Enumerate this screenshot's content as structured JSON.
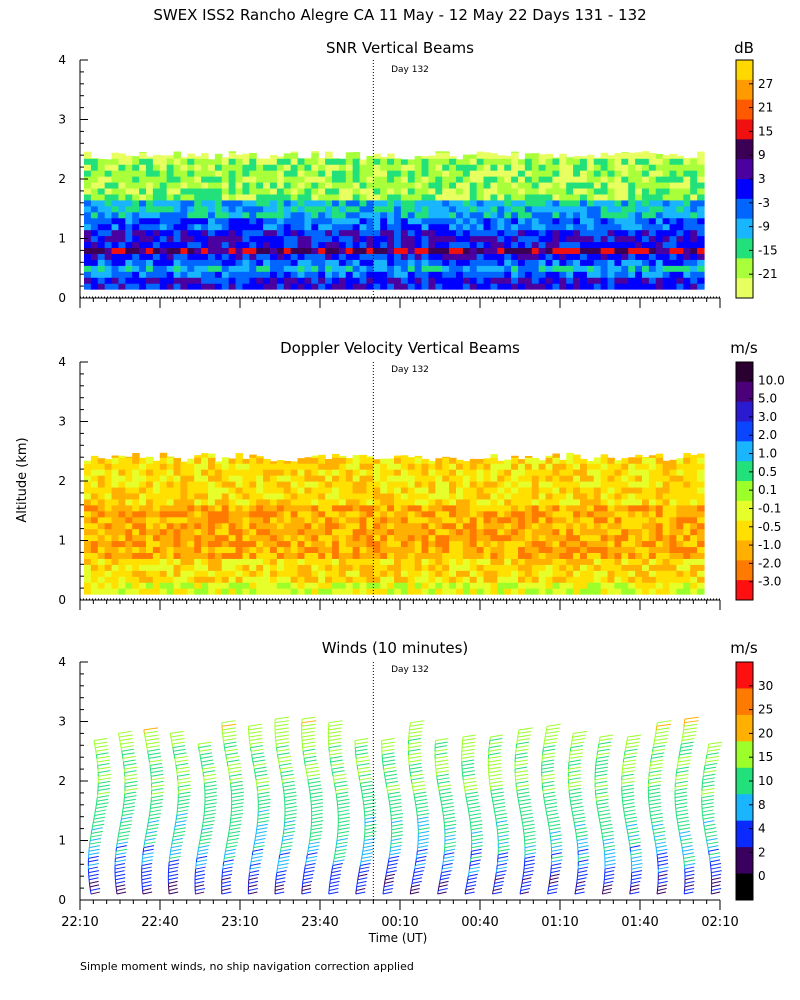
{
  "figure": {
    "title": "SWEX ISS2 Rancho Alegre CA  11 May - 12 May 22 Days 131 - 132",
    "shared_ylabel": "Altitude (km)",
    "footnote": "Simple moment winds, no ship navigation correction applied",
    "day_marker": "Day 132"
  },
  "chart_data": [
    {
      "type": "heatmap",
      "title": "SNR Vertical Beams",
      "units_label": "dB",
      "xlabel": "",
      "x_ticks": [
        "22:10",
        "22:40",
        "23:10",
        "23:40",
        "00:10",
        "00:40",
        "01:10",
        "01:40",
        "02:10"
      ],
      "y_ticks": [
        "0",
        "1",
        "2",
        "3",
        "4"
      ],
      "ylim": [
        0,
        4
      ],
      "time_range_hours": [
        22.1667,
        26.1667
      ],
      "day_boundary_hours": 24.0,
      "data_top_km": 2.4,
      "data_bottom_km": 0.15,
      "colorbar_labels": [
        "27",
        "21",
        "15",
        "9",
        "3",
        "-3",
        "-9",
        "-15",
        "-21"
      ],
      "colorbar_colors": [
        "#ffd800",
        "#ff9a00",
        "#ff5a00",
        "#f01010",
        "#3b0055",
        "#4b00a0",
        "#0000ff",
        "#0066ff",
        "#19b5ff",
        "#22e07a",
        "#a8ff3a",
        "#e8ff60"
      ],
      "profile": [
        {
          "alt_km": 2.35,
          "value_db": -21
        },
        {
          "alt_km": 2.2,
          "value_db": -15
        },
        {
          "alt_km": 1.8,
          "value_db": -15
        },
        {
          "alt_km": 1.5,
          "value_db": -9
        },
        {
          "alt_km": 1.2,
          "value_db": -3
        },
        {
          "alt_km": 0.9,
          "value_db": 3
        },
        {
          "alt_km": 0.7,
          "value_db": 9
        },
        {
          "alt_km": 0.45,
          "value_db": -9
        },
        {
          "alt_km": 0.25,
          "value_db": 3
        }
      ]
    },
    {
      "type": "heatmap",
      "title": "Doppler Velocity Vertical Beams",
      "units_label": "m/s",
      "xlabel": "",
      "x_ticks": [
        "22:10",
        "22:40",
        "23:10",
        "23:40",
        "00:10",
        "00:40",
        "01:10",
        "01:40",
        "02:10"
      ],
      "y_ticks": [
        "0",
        "1",
        "2",
        "3",
        "4"
      ],
      "ylim": [
        0,
        4
      ],
      "time_range_hours": [
        22.1667,
        26.1667
      ],
      "day_boundary_hours": 24.0,
      "data_top_km": 2.4,
      "data_bottom_km": 0.1,
      "colorbar_labels": [
        "10.0",
        "5.0",
        "3.0",
        "2.0",
        "1.0",
        "0.5",
        "0.1",
        "-0.1",
        "-0.5",
        "-1.0",
        "-2.0",
        "-3.0"
      ],
      "colorbar_colors": [
        "#2a0030",
        "#4b007a",
        "#2a1ad0",
        "#0a45ff",
        "#19b5ff",
        "#22e07a",
        "#9dff2a",
        "#e6ff2a",
        "#ffe000",
        "#ffb000",
        "#ff7a00",
        "#ff1010"
      ],
      "profile": [
        {
          "alt_km": 2.3,
          "value_ms": -0.5
        },
        {
          "alt_km": 1.8,
          "value_ms": -0.5
        },
        {
          "alt_km": 1.3,
          "value_ms": -1.0
        },
        {
          "alt_km": 0.8,
          "value_ms": -1.0
        },
        {
          "alt_km": 0.4,
          "value_ms": -0.5
        },
        {
          "alt_km": 0.2,
          "value_ms": -0.1
        }
      ]
    },
    {
      "type": "scatter",
      "title": "Winds (10 minutes)",
      "units_label": "m/s",
      "xlabel": "Time (UT)",
      "x_ticks": [
        "22:10",
        "22:40",
        "23:10",
        "23:40",
        "00:10",
        "00:40",
        "01:10",
        "01:40",
        "02:10"
      ],
      "y_ticks": [
        "0",
        "1",
        "2",
        "3",
        "4"
      ],
      "ylim": [
        0,
        4
      ],
      "time_range_hours": [
        22.1667,
        26.1667
      ],
      "day_boundary_hours": 24.0,
      "colorbar_labels": [
        "30",
        "25",
        "20",
        "15",
        "10",
        "8",
        "4",
        "2",
        "0"
      ],
      "colorbar_colors": [
        "#ff1010",
        "#ff7a00",
        "#ffb000",
        "#9dff2a",
        "#22e07a",
        "#19b5ff",
        "#0a2aff",
        "#3a0060",
        "#000000"
      ],
      "profile_times_hours": [
        22.25,
        22.4167,
        22.5833,
        22.75,
        22.9167,
        23.0833,
        23.25,
        23.4167,
        23.5833,
        23.75,
        23.9167,
        24.0833,
        24.25,
        24.4167,
        24.5833,
        24.75,
        24.9167,
        25.0833,
        25.25,
        25.4167,
        25.5833,
        25.75,
        25.9167,
        26.0833
      ],
      "wind_profile": [
        {
          "alt_km": 3.0,
          "speed_ms": 20
        },
        {
          "alt_km": 2.5,
          "speed_ms": 15
        },
        {
          "alt_km": 2.0,
          "speed_ms": 15
        },
        {
          "alt_km": 1.5,
          "speed_ms": 12
        },
        {
          "alt_km": 1.0,
          "speed_ms": 10
        },
        {
          "alt_km": 0.6,
          "speed_ms": 8
        },
        {
          "alt_km": 0.3,
          "speed_ms": 4
        }
      ]
    }
  ]
}
